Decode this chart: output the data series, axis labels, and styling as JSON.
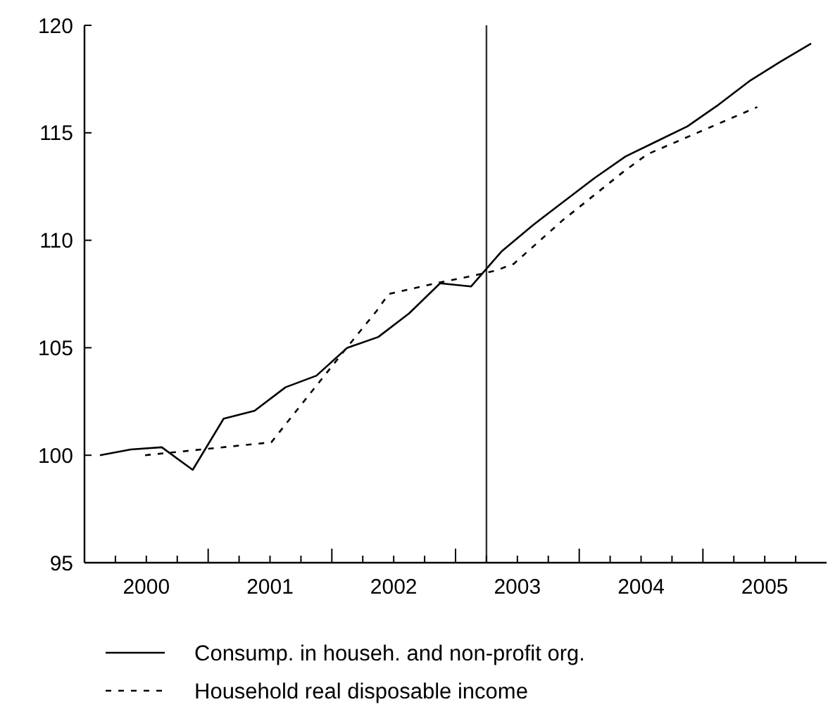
{
  "chart_data": {
    "type": "line",
    "legend": "bottom",
    "xlim": [
      2000,
      2006
    ],
    "ylim": [
      95,
      120
    ],
    "yticks": [
      95,
      100,
      105,
      110,
      115,
      120
    ],
    "xticks": [
      {
        "value": 2000.25,
        "label": null
      },
      {
        "value": 2000.5,
        "label": "2000"
      },
      {
        "value": 2000.75,
        "label": null
      },
      {
        "value": 2001,
        "label": null
      },
      {
        "value": 2001.25,
        "label": null
      },
      {
        "value": 2001.5,
        "label": "2001"
      },
      {
        "value": 2001.75,
        "label": null
      },
      {
        "value": 2002,
        "label": null
      },
      {
        "value": 2002.25,
        "label": null
      },
      {
        "value": 2002.5,
        "label": "2002"
      },
      {
        "value": 2002.75,
        "label": null
      },
      {
        "value": 2003,
        "label": null
      },
      {
        "value": 2003.25,
        "label": null
      },
      {
        "value": 2003.5,
        "label": "2003"
      },
      {
        "value": 2003.75,
        "label": null
      },
      {
        "value": 2004,
        "label": null
      },
      {
        "value": 2004.25,
        "label": null
      },
      {
        "value": 2004.5,
        "label": "2004"
      },
      {
        "value": 2004.75,
        "label": null
      },
      {
        "value": 2005,
        "label": null
      },
      {
        "value": 2005.25,
        "label": null
      },
      {
        "value": 2005.5,
        "label": "2005"
      },
      {
        "value": 2005.75,
        "label": null
      }
    ],
    "x": [
      2000.125,
      2000.375,
      2000.625,
      2000.875,
      2001.125,
      2001.375,
      2001.625,
      2001.875,
      2002.125,
      2002.375,
      2002.625,
      2002.875,
      2003.125,
      2003.375,
      2003.625,
      2003.875,
      2004.125,
      2004.375,
      2004.625,
      2004.875,
      2005.125,
      2005.375,
      2005.625,
      2005.875
    ],
    "ref_lines": [
      {
        "axis": "x",
        "value": 2003.25,
        "label": null,
        "color": "#333333",
        "line_style": "solid"
      }
    ],
    "series": [
      {
        "name": "Consump. in househ. and non-profit org.",
        "color": "#000000",
        "line_style": "solid",
        "values": [
          100.0,
          100.27,
          100.37,
          99.32,
          101.7,
          102.07,
          103.16,
          103.7,
          105.0,
          105.5,
          106.6,
          108.0,
          107.85,
          109.5,
          110.7,
          111.8,
          112.9,
          113.9,
          114.6,
          115.3,
          116.3,
          117.4,
          118.3,
          119.15
        ]
      },
      {
        "name": "Household real disposable income",
        "color": "#000000",
        "line_style": "dashed",
        "x": [
          2000.49,
          2001.51,
          2001.87,
          2002.12,
          2002.36,
          2002.46,
          2002.84,
          2003.1,
          2003.33,
          2003.47,
          2003.86,
          2004.36,
          2004.55,
          2005.44
        ],
        "values": [
          100.0,
          100.6,
          103.2,
          105.0,
          106.7,
          107.5,
          108.0,
          108.3,
          108.6,
          108.9,
          110.9,
          113.2,
          114.0,
          116.2
        ]
      }
    ]
  }
}
